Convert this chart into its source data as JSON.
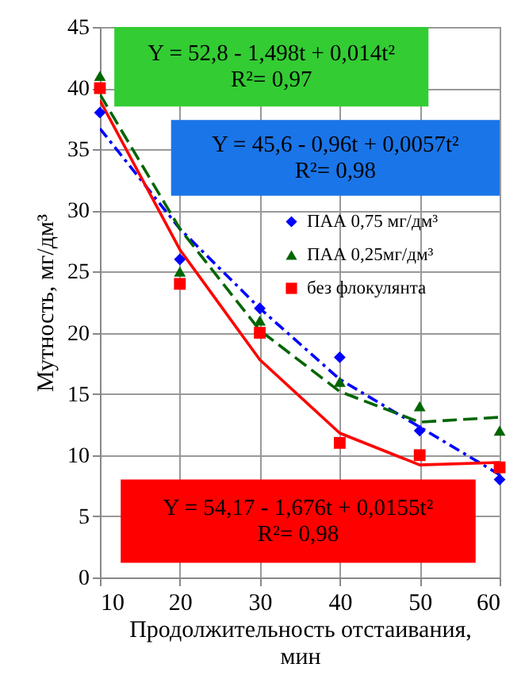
{
  "chart_data": {
    "type": "scatter",
    "xlabel": "Продолжительность отстаивания, мин",
    "ylabel": "Мутность, мг/дм³",
    "x": [
      10,
      20,
      30,
      40,
      50,
      60
    ],
    "xlim": [
      10,
      60
    ],
    "xticks": [
      10,
      20,
      30,
      40,
      50,
      60
    ],
    "ylim": [
      0,
      45
    ],
    "yticks": [
      0,
      5,
      10,
      15,
      20,
      25,
      30,
      35,
      40,
      45
    ],
    "grid": true,
    "legend": "right",
    "series": [
      {
        "name": "ПАА 0,75 мг/дм³",
        "color": "#0000ff",
        "marker": "diamond",
        "values": [
          38,
          26,
          22,
          18,
          12,
          8
        ]
      },
      {
        "name": "ПАА 0,25мг/дм³",
        "color": "#006600",
        "marker": "triangle",
        "values": [
          41,
          25,
          21,
          16,
          14,
          12
        ]
      },
      {
        "name": "без флокулянта",
        "color": "#ff0000",
        "marker": "square",
        "values": [
          40,
          24,
          20,
          11,
          10,
          9
        ]
      },
      {
        "type": "line",
        "color": "#0000ff",
        "line_style": "dashed",
        "values": [
          36.7,
          28.5,
          22,
          16.2,
          12.3,
          8.4
        ]
      },
      {
        "type": "line",
        "color": "#006600",
        "line_style": "dashed",
        "values": [
          39.5,
          28.5,
          20.2,
          15.2,
          12.7,
          13.1
        ]
      },
      {
        "type": "line",
        "color": "#ff0000",
        "line_style": "solid",
        "values": [
          39,
          26.8,
          17.8,
          11.8,
          9.2,
          9.4
        ]
      }
    ],
    "annotations": [
      "Y = 52,8 - 1,498t + 0,014t²\nR²= 0,97",
      "Y = 45,6 - 0,96t + 0,0057t²\nR²= 0,98",
      "Y = 54,17 - 1,676t + 0,0155t²\nR²= 0,98"
    ]
  }
}
